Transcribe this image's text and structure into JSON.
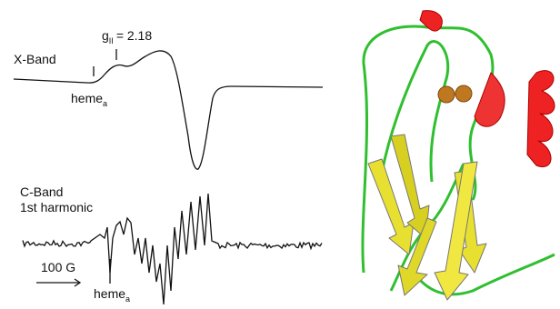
{
  "x_band": {
    "label": "X-Band",
    "g_symbol": "g",
    "g_subscript": "II",
    "g_value": "= 2.18",
    "heme_label": "heme",
    "heme_subscript": "a"
  },
  "c_band": {
    "label_line1": "C-Band",
    "label_line2": "1st harmonic",
    "scale_bar": "100 G",
    "heme_label": "heme",
    "heme_subscript": "a"
  }
}
